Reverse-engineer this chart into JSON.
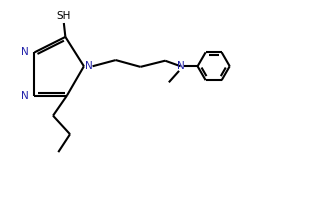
{
  "bg_color": "#ffffff",
  "line_color": "#000000",
  "label_color_N": "#2222aa",
  "line_width": 1.5,
  "fig_width": 3.13,
  "fig_height": 2.19,
  "dpi": 100,
  "xlim": [
    0,
    10
  ],
  "ylim": [
    0,
    7
  ]
}
